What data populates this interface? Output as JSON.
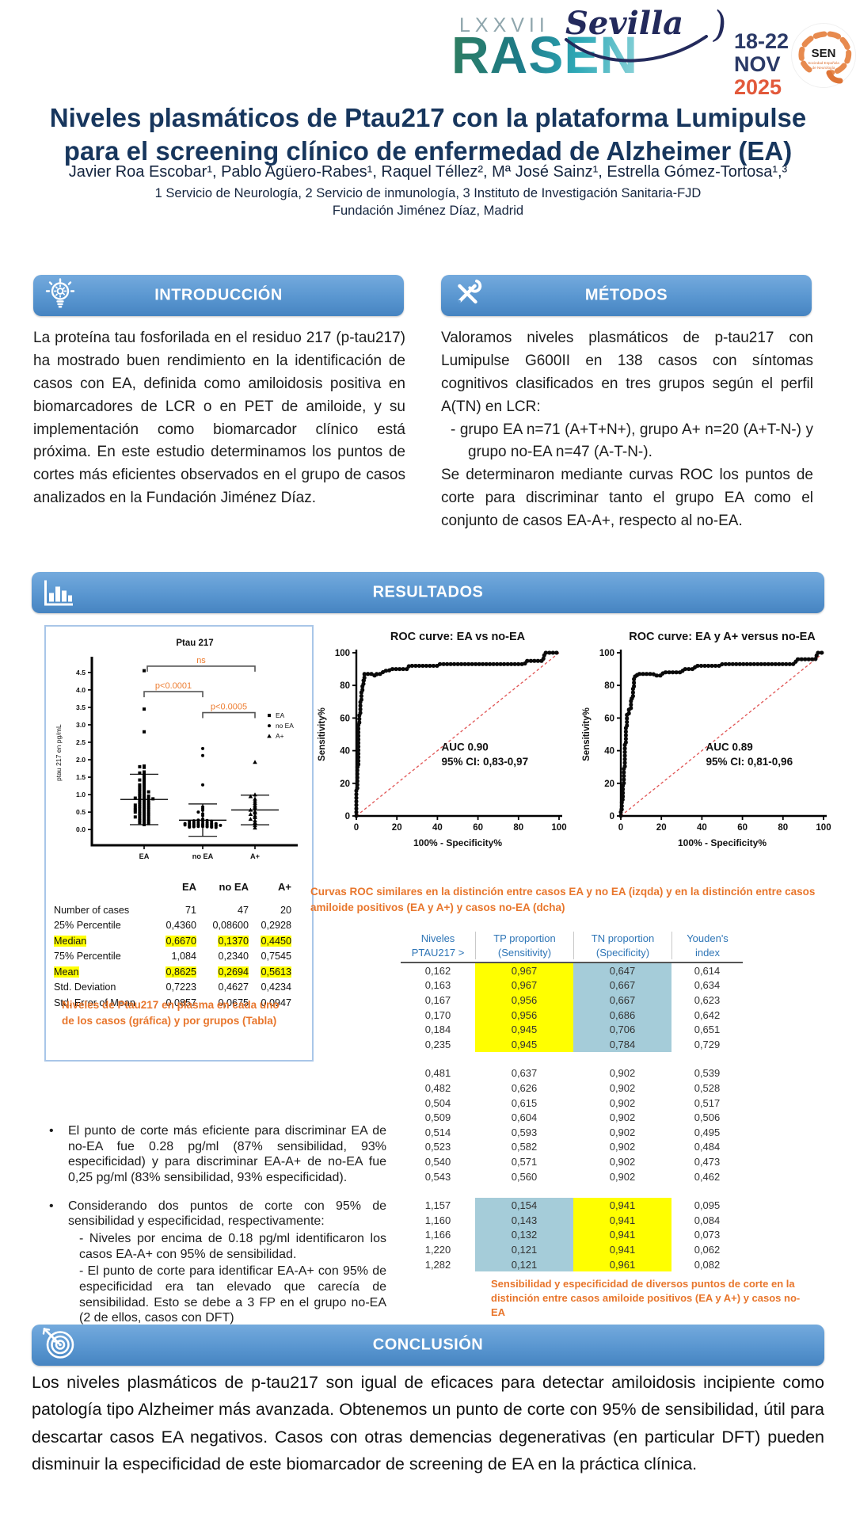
{
  "header": {
    "congress": {
      "roman": "LXXVII",
      "name": "RASEN",
      "city": "Sevilla",
      "dates": "18-22",
      "month": "NOV",
      "year": "2025",
      "sen": "SEN",
      "sen_sub1": "Sociedad Española",
      "sen_sub2": "de Neurología"
    },
    "title_line1": "Niveles plasmáticos de Ptau217 con la plataforma Lumipulse",
    "title_line2": "para el screening clínico de enfermedad de Alzheimer (EA)",
    "authors": "Javier Roa Escobar¹, Pablo Agüero-Rabes¹, Raquel Téllez², Mª José Sainz¹, Estrella Gómez-Tortosa¹,³",
    "affiliation1": "1 Servicio de Neurología, 2 Servicio de inmunología, 3 Instituto de Investigación Sanitaria-FJD",
    "affiliation2": "Fundación Jiménez Díaz, Madrid"
  },
  "sections": {
    "intro": {
      "title": "INTRODUCCIÓN",
      "body": "La proteína tau fosforilada en el residuo 217 (p-tau217) ha mostrado buen rendimiento en la identificación de casos con EA, definida como amiloidosis positiva en biomarcadores de LCR o en PET de amiloide, y su implementación como biomarcador clínico está próxima.  En este estudio determinamos los puntos de cortes más eficientes observados en el grupo de casos analizados en la Fundación Jiménez Díaz."
    },
    "methods": {
      "title": "MÉTODOS",
      "body1": "Valoramos niveles plasmáticos de p-tau217 con Lumipulse G600II en 138 casos con síntomas cognitivos clasificados en tres grupos según el perfil A(TN) en LCR:",
      "bullet": "-   grupo EA n=71 (A+T+N+), grupo A+ n=20 (A+T-N-)  y grupo no-EA n=47 (A-T-N-).",
      "body2": "Se determinaron mediante curvas ROC los puntos de corte para discriminar tanto el grupo EA como el conjunto de casos EA-A+, respecto al no-EA."
    },
    "results": {
      "title": "RESULTADOS"
    },
    "conclusion": {
      "title": "CONCLUSIÓN",
      "body": "Los niveles plasmáticos de p-tau217 son igual de eficaces para detectar amiloidosis incipiente como patología tipo Alzheimer más avanzada. Obtenemos un punto de corte con 95% de sensibilidad, útil para descartar casos EA negativos. Casos con otras demencias degenerativas (en particular DFT) pueden disminuir la especificidad de este biomarcador de screening de EA en la práctica clínica."
    }
  },
  "figure1": {
    "caption": "Niveles de Ptau217 en plasma en cada uno de los casos (gráfica) y por grupos (Tabla)",
    "stats_table": {
      "columns": [
        "",
        "EA",
        "no EA",
        "A+"
      ],
      "rows": [
        {
          "label": "Number of cases",
          "values": [
            "71",
            "47",
            "20"
          ],
          "highlight": false
        },
        {
          "label": "25% Percentile",
          "values": [
            "0,4360",
            "0,08600",
            "0,2928"
          ],
          "highlight": false
        },
        {
          "label": "Median",
          "values": [
            "0,6670",
            "0,1370",
            "0,4450"
          ],
          "highlight": true
        },
        {
          "label": "75% Percentile",
          "values": [
            "1,084",
            "0,2340",
            "0,7545"
          ],
          "highlight": false
        },
        {
          "label": "Mean",
          "values": [
            "0,8625",
            "0,2694",
            "0,5613"
          ],
          "highlight": true
        },
        {
          "label": "Std. Deviation",
          "values": [
            "0,7223",
            "0,4627",
            "0,4234"
          ],
          "highlight": false
        },
        {
          "label": "Std. Error of Mean",
          "values": [
            "0,0857",
            "0,0675",
            "0,0947"
          ],
          "highlight": false
        }
      ]
    }
  },
  "roc_caption": "Curvas ROC similares en la distinción entre casos EA y no EA (izqda) y en la distinción entre casos amiloide positivos (EA y A+) y casos no-EA (dcha)",
  "cutoff_table": {
    "caption": "Sensibilidad y especificidad de diversos puntos de corte en la distinción entre casos amiloide positivos (EA y A+) y casos no-EA",
    "header": [
      [
        "Niveles",
        "PTAU217 >"
      ],
      [
        "TP proportion",
        "(Sensitivity)"
      ],
      [
        "TN proportion",
        "(Specificity)"
      ],
      [
        "Youden's",
        "index"
      ]
    ],
    "yellow": "#ffff00",
    "lightblue": "#a5ccd9",
    "blocks": [
      {
        "tp_bg": "#ffff00",
        "tn_bg": "#a5ccd9",
        "rows": [
          [
            "0,162",
            "0,967",
            "0,647",
            "0,614"
          ],
          [
            "0,163",
            "0,967",
            "0,667",
            "0,634"
          ],
          [
            "0,167",
            "0,956",
            "0,667",
            "0,623"
          ],
          [
            "0,170",
            "0,956",
            "0,686",
            "0,642"
          ],
          [
            "0,184",
            "0,945",
            "0,706",
            "0,651"
          ],
          [
            "0,235",
            "0,945",
            "0,784",
            "0,729"
          ]
        ]
      },
      {
        "tp_bg": "",
        "tn_bg": "",
        "rows": [
          [
            "0,481",
            "0,637",
            "0,902",
            "0,539"
          ],
          [
            "0,482",
            "0,626",
            "0,902",
            "0,528"
          ],
          [
            "0,504",
            "0,615",
            "0,902",
            "0,517"
          ],
          [
            "0,509",
            "0,604",
            "0,902",
            "0,506"
          ],
          [
            "0,514",
            "0,593",
            "0,902",
            "0,495"
          ],
          [
            "0,523",
            "0,582",
            "0,902",
            "0,484"
          ],
          [
            "0,540",
            "0,571",
            "0,902",
            "0,473"
          ],
          [
            "0,543",
            "0,560",
            "0,902",
            "0,462"
          ]
        ]
      },
      {
        "tp_bg": "#a5ccd9",
        "tn_bg": "#ffff00",
        "rows": [
          [
            "1,157",
            "0,154",
            "0,941",
            "0,095"
          ],
          [
            "1,160",
            "0,143",
            "0,941",
            "0,084"
          ],
          [
            "1,166",
            "0,132",
            "0,941",
            "0,073"
          ],
          [
            "1,220",
            "0,121",
            "0,941",
            "0,062"
          ],
          [
            "1,282",
            "0,121",
            "0,961",
            "0,082"
          ]
        ]
      }
    ]
  },
  "bullets": [
    {
      "text": "El punto de corte más eficiente para discriminar EA de no-EA  fue 0.28 pg/ml (87% sensibilidad, 93% especificidad) y para discriminar EA-A+  de  no-EA  fue  0,25  pg/ml  (83%  sensibilidad,  93% especificidad).",
      "subs": []
    },
    {
      "text": "Considerando  dos  puntos  de  corte  con  95%  de  sensibilidad  y especificidad, respectivamente:",
      "subs": [
        "- Niveles por encima de 0.18 pg/ml identificaron los casos EA-A+ con 95% de sensibilidad.",
        "- El punto de corte para identificar EA-A+ con 95% de especificidad era tan elevado que carecía de sensibilidad. Esto se debe a 3 FP en el grupo no-EA (2 de ellos, casos con DFT)"
      ]
    }
  ],
  "chart_data": [
    {
      "type": "scatter",
      "title": "Ptau 217",
      "ylabel": "ptau 217 en pg/mL",
      "ylim": [
        -0.45,
        4.95
      ],
      "yticks": [
        0.0,
        0.5,
        1.0,
        1.5,
        2.0,
        2.5,
        3.0,
        3.5,
        4.0,
        4.5
      ],
      "categories": [
        "EA",
        "no EA",
        "A+"
      ],
      "sig_color": "#ed7d31",
      "annotations": [
        {
          "label": "ns",
          "from": 0,
          "to": 2,
          "y": 4.68
        },
        {
          "label": "p<0.0001",
          "from": 0,
          "to": 1,
          "y": 3.95
        },
        {
          "label": "p<0.0005",
          "from": 1,
          "to": 2,
          "y": 3.35
        }
      ],
      "legend": [
        {
          "label": "EA",
          "marker": "square"
        },
        {
          "label": "no EA",
          "marker": "circle"
        },
        {
          "label": "A+",
          "marker": "triangle"
        }
      ],
      "groups": [
        {
          "name": "EA",
          "marker": "square",
          "mean": 0.8625,
          "sd": 0.7223,
          "values": [
            4.55,
            3.45,
            2.8,
            1.82,
            1.8,
            1.78,
            1.65,
            1.62,
            1.58,
            1.52,
            1.45,
            1.42,
            1.38,
            1.32,
            1.28,
            1.25,
            1.22,
            1.18,
            1.15,
            1.12,
            1.1,
            1.08,
            1.05,
            1.02,
            1.0,
            0.98,
            0.96,
            0.94,
            0.92,
            0.9,
            0.9,
            0.88,
            0.86,
            0.85,
            0.83,
            0.8,
            0.78,
            0.76,
            0.74,
            0.72,
            0.7,
            0.7,
            0.68,
            0.66,
            0.64,
            0.62,
            0.6,
            0.6,
            0.58,
            0.56,
            0.54,
            0.52,
            0.5,
            0.5,
            0.48,
            0.46,
            0.44,
            0.42,
            0.4,
            0.38,
            0.36,
            0.34,
            0.32,
            0.3,
            0.28,
            0.26,
            0.24,
            0.22,
            0.2,
            0.17,
            0.14
          ]
        },
        {
          "name": "no EA",
          "marker": "circle",
          "mean": 0.2694,
          "sd": 0.4627,
          "values": [
            2.32,
            2.12,
            1.28,
            0.65,
            0.6,
            0.55,
            0.5,
            0.45,
            0.4,
            0.3,
            0.28,
            0.27,
            0.26,
            0.25,
            0.24,
            0.23,
            0.22,
            0.21,
            0.2,
            0.19,
            0.18,
            0.18,
            0.17,
            0.17,
            0.16,
            0.16,
            0.15,
            0.15,
            0.14,
            0.14,
            0.13,
            0.13,
            0.12,
            0.12,
            0.12,
            0.11,
            0.11,
            0.1,
            0.1,
            0.1,
            0.09,
            0.09,
            0.08,
            0.08,
            0.07,
            0.07,
            0.06
          ]
        },
        {
          "name": "A+",
          "marker": "triangle",
          "mean": 0.5613,
          "sd": 0.4234,
          "values": [
            1.93,
            1.0,
            0.95,
            0.88,
            0.82,
            0.76,
            0.7,
            0.65,
            0.6,
            0.56,
            0.52,
            0.48,
            0.44,
            0.4,
            0.35,
            0.3,
            0.26,
            0.2,
            0.12,
            0.05
          ]
        }
      ]
    },
    {
      "type": "line",
      "subtype": "roc",
      "title": "ROC curve: EA vs no-EA",
      "xlabel": "100% - Specificity%",
      "ylabel": "Sensitivity%",
      "xlim": [
        0,
        100
      ],
      "ylim": [
        0,
        100
      ],
      "xticks": [
        0,
        20,
        40,
        60,
        80,
        100
      ],
      "yticks": [
        0,
        20,
        40,
        60,
        80,
        100
      ],
      "auc_label": "AUC 0.90",
      "ci_label": "95% CI: 0,83-0,97",
      "diagonal": true,
      "points": [
        [
          0,
          0
        ],
        [
          0,
          17
        ],
        [
          0.5,
          17
        ],
        [
          0.5,
          30
        ],
        [
          1,
          30
        ],
        [
          1,
          57
        ],
        [
          1.5,
          57
        ],
        [
          1.5,
          62
        ],
        [
          2,
          62
        ],
        [
          2,
          70
        ],
        [
          2.5,
          70
        ],
        [
          2.5,
          76
        ],
        [
          3,
          76
        ],
        [
          3,
          80
        ],
        [
          3.5,
          80
        ],
        [
          3.5,
          83
        ],
        [
          4,
          83
        ],
        [
          4,
          87
        ],
        [
          8,
          87
        ],
        [
          9,
          86
        ],
        [
          10,
          86
        ],
        [
          10,
          87
        ],
        [
          12,
          87
        ],
        [
          13,
          88
        ],
        [
          14,
          89
        ],
        [
          16,
          89
        ],
        [
          17,
          90
        ],
        [
          25,
          90
        ],
        [
          26,
          92
        ],
        [
          40,
          92
        ],
        [
          41,
          93
        ],
        [
          55,
          93
        ],
        [
          74,
          93
        ],
        [
          83,
          93
        ],
        [
          84,
          95
        ],
        [
          92,
          95
        ],
        [
          93,
          100
        ],
        [
          100,
          100
        ]
      ]
    },
    {
      "type": "line",
      "subtype": "roc",
      "title": "ROC curve: EA y A+ versus no-EA",
      "xlabel": "100% - Specificity%",
      "ylabel": "Sensitivity%",
      "xlim": [
        0,
        100
      ],
      "ylim": [
        0,
        100
      ],
      "xticks": [
        0,
        20,
        40,
        60,
        80,
        100
      ],
      "yticks": [
        0,
        20,
        40,
        60,
        80,
        100
      ],
      "auc_label": "AUC 0.89",
      "ci_label": "95% CI: 0,81-0,96",
      "diagonal": true,
      "points": [
        [
          0,
          0
        ],
        [
          0,
          4
        ],
        [
          0.5,
          4
        ],
        [
          0.5,
          10
        ],
        [
          1,
          10
        ],
        [
          1,
          20
        ],
        [
          1.5,
          20
        ],
        [
          1.5,
          30
        ],
        [
          2,
          30
        ],
        [
          2,
          45
        ],
        [
          2.5,
          45
        ],
        [
          2.5,
          55
        ],
        [
          3,
          55
        ],
        [
          3,
          62
        ],
        [
          4,
          62
        ],
        [
          4,
          66
        ],
        [
          5,
          66
        ],
        [
          5,
          72
        ],
        [
          6,
          72
        ],
        [
          6,
          78
        ],
        [
          6.5,
          78
        ],
        [
          6.5,
          84
        ],
        [
          7,
          84
        ],
        [
          7,
          86
        ],
        [
          8,
          86
        ],
        [
          8,
          87
        ],
        [
          16,
          87
        ],
        [
          17,
          86
        ],
        [
          20,
          86
        ],
        [
          21,
          88
        ],
        [
          30,
          88
        ],
        [
          31,
          90
        ],
        [
          36,
          90
        ],
        [
          37,
          92
        ],
        [
          49,
          92
        ],
        [
          50,
          93
        ],
        [
          64,
          93
        ],
        [
          85,
          93
        ],
        [
          86,
          94
        ],
        [
          87,
          96
        ],
        [
          96,
          96
        ],
        [
          97,
          100
        ],
        [
          100,
          100
        ]
      ]
    }
  ]
}
